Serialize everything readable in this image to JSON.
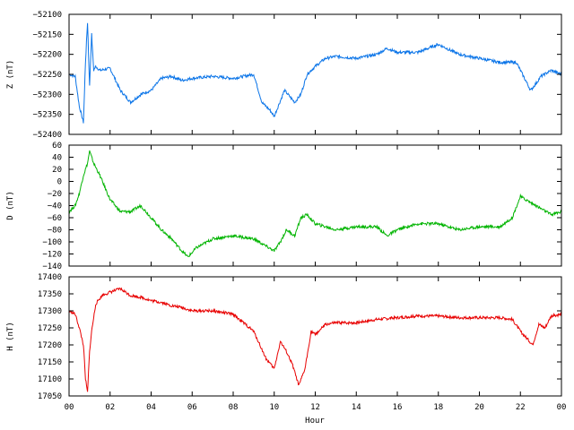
{
  "chart_data": [
    {
      "type": "line",
      "ylabel": "Z (nT)",
      "ylim": [
        -52400,
        -52100
      ],
      "yticks": [
        -52100,
        -52150,
        -52200,
        -52250,
        -52300,
        -52350,
        -52400
      ],
      "color": "#0a74e8",
      "x": [
        0,
        0.3,
        0.5,
        0.7,
        0.8,
        0.9,
        1.0,
        1.1,
        1.2,
        1.3,
        1.5,
        2.0,
        2.5,
        3.0,
        3.5,
        4.0,
        4.5,
        5.0,
        5.5,
        6.0,
        7.0,
        8.0,
        9.0,
        9.4,
        9.8,
        10.0,
        10.5,
        11.0,
        11.3,
        11.6,
        12.0,
        12.5,
        13.0,
        14.0,
        15.0,
        15.5,
        16.0,
        17.0,
        18.0,
        19.0,
        20.0,
        21.0,
        21.8,
        22.2,
        22.5,
        22.8,
        23.0,
        23.5,
        24.0
      ],
      "values": [
        -52250,
        -52255,
        -52330,
        -52370,
        -52220,
        -52120,
        -52280,
        -52150,
        -52240,
        -52230,
        -52240,
        -52235,
        -52290,
        -52320,
        -52300,
        -52290,
        -52260,
        -52255,
        -52265,
        -52260,
        -52255,
        -52260,
        -52250,
        -52320,
        -52340,
        -52355,
        -52290,
        -52320,
        -52300,
        -52250,
        -52230,
        -52210,
        -52205,
        -52210,
        -52200,
        -52185,
        -52195,
        -52195,
        -52175,
        -52200,
        -52210,
        -52220,
        -52220,
        -52260,
        -52290,
        -52270,
        -52255,
        -52240,
        -52250
      ]
    },
    {
      "type": "line",
      "ylabel": "D (nT)",
      "ylim": [
        -140,
        60
      ],
      "yticks": [
        60,
        40,
        20,
        0,
        -20,
        -40,
        -60,
        -80,
        -100,
        -120,
        -140
      ],
      "color": "#00b400",
      "x": [
        0,
        0.3,
        0.5,
        0.7,
        0.9,
        1.0,
        1.2,
        1.5,
        2.0,
        2.5,
        3.0,
        3.5,
        4.0,
        4.5,
        5.0,
        5.5,
        5.8,
        6.2,
        7.0,
        8.0,
        9.0,
        9.5,
        10.0,
        10.3,
        10.6,
        11.0,
        11.3,
        11.6,
        12.0,
        12.5,
        13.0,
        14.0,
        15.0,
        15.5,
        16.0,
        17.0,
        18.0,
        19.0,
        20.0,
        21.0,
        21.6,
        22.0,
        22.5,
        23.0,
        23.5,
        24.0
      ],
      "values": [
        -50,
        -40,
        -20,
        10,
        30,
        50,
        30,
        10,
        -30,
        -50,
        -50,
        -40,
        -60,
        -80,
        -95,
        -115,
        -125,
        -110,
        -95,
        -90,
        -95,
        -105,
        -115,
        -100,
        -80,
        -90,
        -60,
        -55,
        -70,
        -75,
        -80,
        -75,
        -75,
        -90,
        -80,
        -70,
        -70,
        -80,
        -75,
        -75,
        -60,
        -25,
        -35,
        -45,
        -55,
        -50
      ]
    },
    {
      "type": "line",
      "ylabel": "H (nT)",
      "ylim": [
        17050,
        17400
      ],
      "yticks": [
        17400,
        17350,
        17300,
        17250,
        17200,
        17150,
        17100,
        17050
      ],
      "xlabel": "Hour",
      "xticks": [
        "00",
        "02",
        "04",
        "06",
        "08",
        "10",
        "12",
        "14",
        "16",
        "18",
        "20",
        "22",
        "00"
      ],
      "color": "#e80000",
      "x": [
        0,
        0.3,
        0.5,
        0.7,
        0.8,
        0.9,
        1.0,
        1.1,
        1.3,
        1.6,
        2.0,
        2.5,
        3.0,
        3.5,
        4.0,
        4.5,
        5.0,
        5.5,
        6.0,
        7.0,
        8.0,
        8.5,
        9.0,
        9.3,
        9.6,
        10.0,
        10.3,
        10.6,
        10.9,
        11.2,
        11.5,
        11.8,
        12.0,
        12.5,
        13.0,
        14.0,
        15.0,
        16.0,
        17.0,
        18.0,
        19.0,
        20.0,
        21.0,
        21.6,
        22.0,
        22.3,
        22.6,
        22.9,
        23.2,
        23.5,
        24.0
      ],
      "values": [
        17300,
        17290,
        17250,
        17200,
        17100,
        17060,
        17180,
        17240,
        17320,
        17345,
        17355,
        17365,
        17345,
        17340,
        17330,
        17325,
        17315,
        17310,
        17300,
        17300,
        17290,
        17265,
        17240,
        17200,
        17160,
        17130,
        17210,
        17180,
        17140,
        17080,
        17130,
        17240,
        17230,
        17260,
        17265,
        17265,
        17275,
        17280,
        17285,
        17285,
        17280,
        17280,
        17280,
        17275,
        17240,
        17220,
        17200,
        17260,
        17250,
        17285,
        17290
      ]
    }
  ]
}
